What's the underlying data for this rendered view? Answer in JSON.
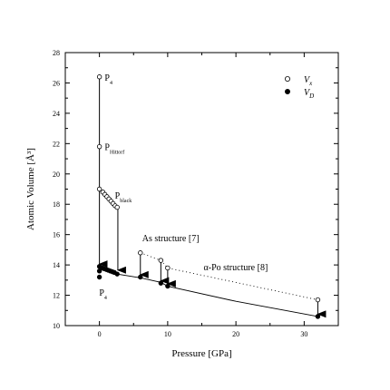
{
  "chart_data": {
    "type": "scatter",
    "xlabel": "Pressure [GPa]",
    "ylabel": "Atomic Volume [Å³]",
    "xlim": [
      -5,
      35
    ],
    "ylim": [
      10,
      28
    ],
    "x_ticks": [
      0,
      10,
      20,
      30
    ],
    "y_ticks": [
      10,
      12,
      14,
      16,
      18,
      20,
      22,
      24,
      26,
      28
    ],
    "grid": false,
    "legend_position": "top-right",
    "legend": [
      {
        "symbol": "open-circle",
        "label": "V",
        "sub": "x"
      },
      {
        "symbol": "filled-circle",
        "label": "V",
        "sub": "D"
      }
    ],
    "series": [
      {
        "name": "Vx",
        "marker": "open-circle",
        "points": [
          [
            0,
            26.4
          ],
          [
            0,
            21.8
          ],
          [
            0,
            19.0
          ],
          [
            0.5,
            18.8
          ],
          [
            0.8,
            18.65
          ],
          [
            1.1,
            18.5
          ],
          [
            1.4,
            18.35
          ],
          [
            1.7,
            18.2
          ],
          [
            2.0,
            18.05
          ],
          [
            2.3,
            17.9
          ],
          [
            2.6,
            17.8
          ],
          [
            6,
            14.8
          ],
          [
            9,
            14.3
          ],
          [
            10,
            13.8
          ],
          [
            32,
            11.7
          ]
        ]
      },
      {
        "name": "VD",
        "marker": "filled-circle",
        "points": [
          [
            0,
            13.9
          ],
          [
            0,
            13.6
          ],
          [
            0,
            13.2
          ],
          [
            0.4,
            13.8
          ],
          [
            0.7,
            13.75
          ],
          [
            1.0,
            13.7
          ],
          [
            1.3,
            13.65
          ],
          [
            1.6,
            13.6
          ],
          [
            1.9,
            13.55
          ],
          [
            2.2,
            13.5
          ],
          [
            2.6,
            13.4
          ],
          [
            6,
            13.2
          ],
          [
            9,
            12.8
          ],
          [
            10,
            12.6
          ],
          [
            32,
            10.6
          ]
        ]
      }
    ],
    "vd_fit_line": [
      [
        0,
        13.9
      ],
      [
        2.6,
        13.4
      ],
      [
        6,
        13.15
      ],
      [
        9,
        12.85
      ],
      [
        10,
        12.6
      ],
      [
        20,
        11.6
      ],
      [
        32,
        10.6
      ]
    ],
    "dotted_line": [
      [
        6,
        14.8
      ],
      [
        9,
        14.3
      ],
      [
        10,
        13.8
      ],
      [
        32,
        11.7
      ]
    ],
    "arrows": [
      {
        "x": 0,
        "from": 26.4,
        "to": 14.0
      },
      {
        "x": 2.7,
        "from": 17.8,
        "to": 13.6
      },
      {
        "x": 6,
        "from": 14.8,
        "to": 13.3
      },
      {
        "x": 9,
        "from": 14.3,
        "to": 12.9
      },
      {
        "x": 10,
        "from": 13.8,
        "to": 12.7
      },
      {
        "x": 32,
        "from": 11.7,
        "to": 10.7
      }
    ],
    "annotations": [
      {
        "text": "P",
        "sub": "4",
        "x": 0.5,
        "y": 26.4,
        "anchor": "start"
      },
      {
        "text": "P",
        "sub": "Hittorf",
        "x": 0.5,
        "y": 21.8,
        "anchor": "start"
      },
      {
        "text": "P",
        "sub": "black",
        "x": 2.0,
        "y": 18.6,
        "anchor": "start"
      },
      {
        "text": "As structure [7]",
        "sub": "",
        "x": 6.0,
        "y": 15.8,
        "anchor": "start"
      },
      {
        "text": "α-Po structure [8]",
        "sub": "",
        "x": 15.0,
        "y": 13.9,
        "anchor": "start"
      },
      {
        "text": "P",
        "sub": "4",
        "x": -0.3,
        "y": 12.2,
        "anchor": "start"
      }
    ]
  }
}
